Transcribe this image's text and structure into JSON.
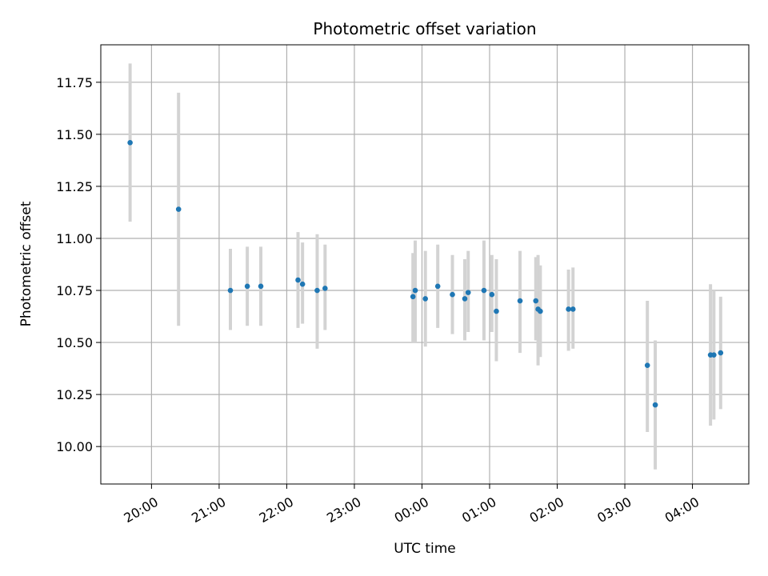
{
  "chart_data": {
    "type": "scatter",
    "title": "Photometric offset variation",
    "xlabel": "UTC time",
    "ylabel": "Photometric offset",
    "grid": true,
    "legend": "none",
    "colors": {
      "point": "#1f77b4",
      "errorbar": "#d3d3d3",
      "grid": "#b0b0b0"
    },
    "x_ticks": [
      "20:00",
      "21:00",
      "22:00",
      "23:00",
      "00:00",
      "01:00",
      "02:00",
      "03:00",
      "04:00"
    ],
    "y_ticks": [
      "10.00",
      "10.25",
      "10.50",
      "10.75",
      "11.00",
      "11.25",
      "11.50",
      "11.75"
    ],
    "xlim": [
      "19:15",
      "04:50"
    ],
    "ylim": [
      9.82,
      11.93
    ],
    "points": [
      {
        "x": "19:41",
        "y": 11.46,
        "ylo": 11.08,
        "yhi": 11.84
      },
      {
        "x": "20:24",
        "y": 11.14,
        "ylo": 10.58,
        "yhi": 11.7
      },
      {
        "x": "21:10",
        "y": 10.75,
        "ylo": 10.56,
        "yhi": 10.95
      },
      {
        "x": "21:25",
        "y": 10.77,
        "ylo": 10.58,
        "yhi": 10.96
      },
      {
        "x": "21:37",
        "y": 10.77,
        "ylo": 10.58,
        "yhi": 10.96
      },
      {
        "x": "22:10",
        "y": 10.8,
        "ylo": 10.57,
        "yhi": 11.03
      },
      {
        "x": "22:14",
        "y": 10.78,
        "ylo": 10.59,
        "yhi": 10.98
      },
      {
        "x": "22:27",
        "y": 10.75,
        "ylo": 10.47,
        "yhi": 11.02
      },
      {
        "x": "22:34",
        "y": 10.76,
        "ylo": 10.56,
        "yhi": 10.97
      },
      {
        "x": "23:52",
        "y": 10.72,
        "ylo": 10.5,
        "yhi": 10.93
      },
      {
        "x": "23:54",
        "y": 10.75,
        "ylo": 10.5,
        "yhi": 10.99
      },
      {
        "x": "00:03",
        "y": 10.71,
        "ylo": 10.48,
        "yhi": 10.94
      },
      {
        "x": "00:14",
        "y": 10.77,
        "ylo": 10.57,
        "yhi": 10.97
      },
      {
        "x": "00:27",
        "y": 10.73,
        "ylo": 10.54,
        "yhi": 10.92
      },
      {
        "x": "00:38",
        "y": 10.71,
        "ylo": 10.51,
        "yhi": 10.9
      },
      {
        "x": "00:41",
        "y": 10.74,
        "ylo": 10.55,
        "yhi": 10.94
      },
      {
        "x": "00:55",
        "y": 10.75,
        "ylo": 10.51,
        "yhi": 10.99
      },
      {
        "x": "01:02",
        "y": 10.73,
        "ylo": 10.55,
        "yhi": 10.92
      },
      {
        "x": "01:06",
        "y": 10.65,
        "ylo": 10.41,
        "yhi": 10.9
      },
      {
        "x": "01:27",
        "y": 10.7,
        "ylo": 10.45,
        "yhi": 10.94
      },
      {
        "x": "01:41",
        "y": 10.7,
        "ylo": 10.51,
        "yhi": 10.91
      },
      {
        "x": "01:43",
        "y": 10.66,
        "ylo": 10.39,
        "yhi": 10.92
      },
      {
        "x": "01:45",
        "y": 10.65,
        "ylo": 10.43,
        "yhi": 10.87
      },
      {
        "x": "02:10",
        "y": 10.66,
        "ylo": 10.46,
        "yhi": 10.85
      },
      {
        "x": "02:14",
        "y": 10.66,
        "ylo": 10.47,
        "yhi": 10.86
      },
      {
        "x": "03:20",
        "y": 10.39,
        "ylo": 10.07,
        "yhi": 10.7
      },
      {
        "x": "03:27",
        "y": 10.2,
        "ylo": 9.89,
        "yhi": 10.51
      },
      {
        "x": "04:16",
        "y": 10.44,
        "ylo": 10.1,
        "yhi": 10.78
      },
      {
        "x": "04:19",
        "y": 10.44,
        "ylo": 10.13,
        "yhi": 10.75
      },
      {
        "x": "04:25",
        "y": 10.45,
        "ylo": 10.18,
        "yhi": 10.72
      }
    ]
  }
}
